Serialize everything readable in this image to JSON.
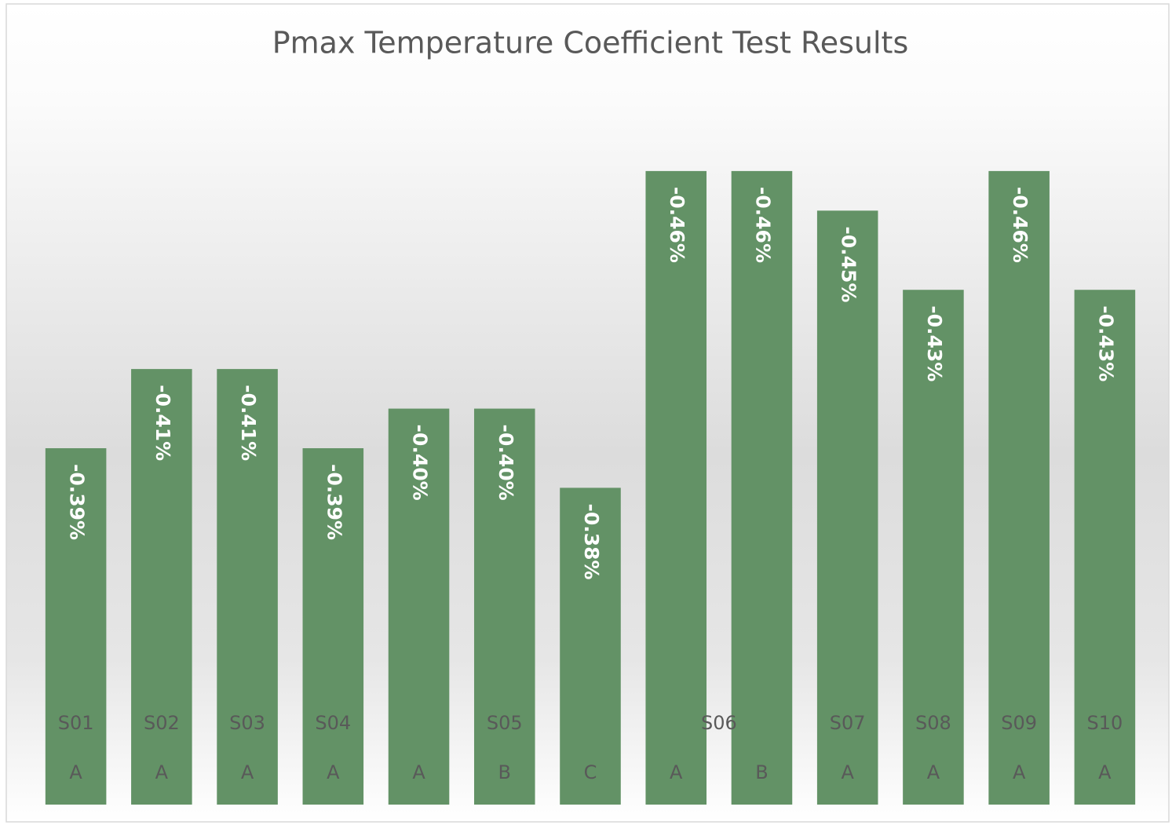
{
  "chart_data": {
    "type": "bar",
    "title": "Pmax Temperature Coefficient Test Results",
    "categories": [
      "A",
      "A",
      "A",
      "A",
      "A",
      "B",
      "C",
      "A",
      "B",
      "A",
      "A",
      "A",
      "A"
    ],
    "category_groups": [
      {
        "label": "S01",
        "span": 1
      },
      {
        "label": "S02",
        "span": 1
      },
      {
        "label": "S03",
        "span": 1
      },
      {
        "label": "S04",
        "span": 1
      },
      {
        "label": "S05",
        "span": 3
      },
      {
        "label": "S06",
        "span": 2
      },
      {
        "label": "S07",
        "span": 1
      },
      {
        "label": "S08",
        "span": 1
      },
      {
        "label": "S09",
        "span": 1
      },
      {
        "label": "S10",
        "span": 1
      }
    ],
    "values": [
      -0.39,
      -0.41,
      -0.41,
      -0.39,
      -0.4,
      -0.4,
      -0.38,
      -0.46,
      -0.46,
      -0.45,
      -0.43,
      -0.46,
      -0.43
    ],
    "value_labels": [
      "-0.39%",
      "-0.41%",
      "-0.41%",
      "-0.39%",
      "-0.40%",
      "-0.40%",
      "-0.38%",
      "-0.46%",
      "-0.46%",
      "-0.45%",
      "-0.43%",
      "-0.46%",
      "-0.43%"
    ],
    "color": "#639266",
    "ylim": [
      -0.3,
      -0.48
    ]
  }
}
